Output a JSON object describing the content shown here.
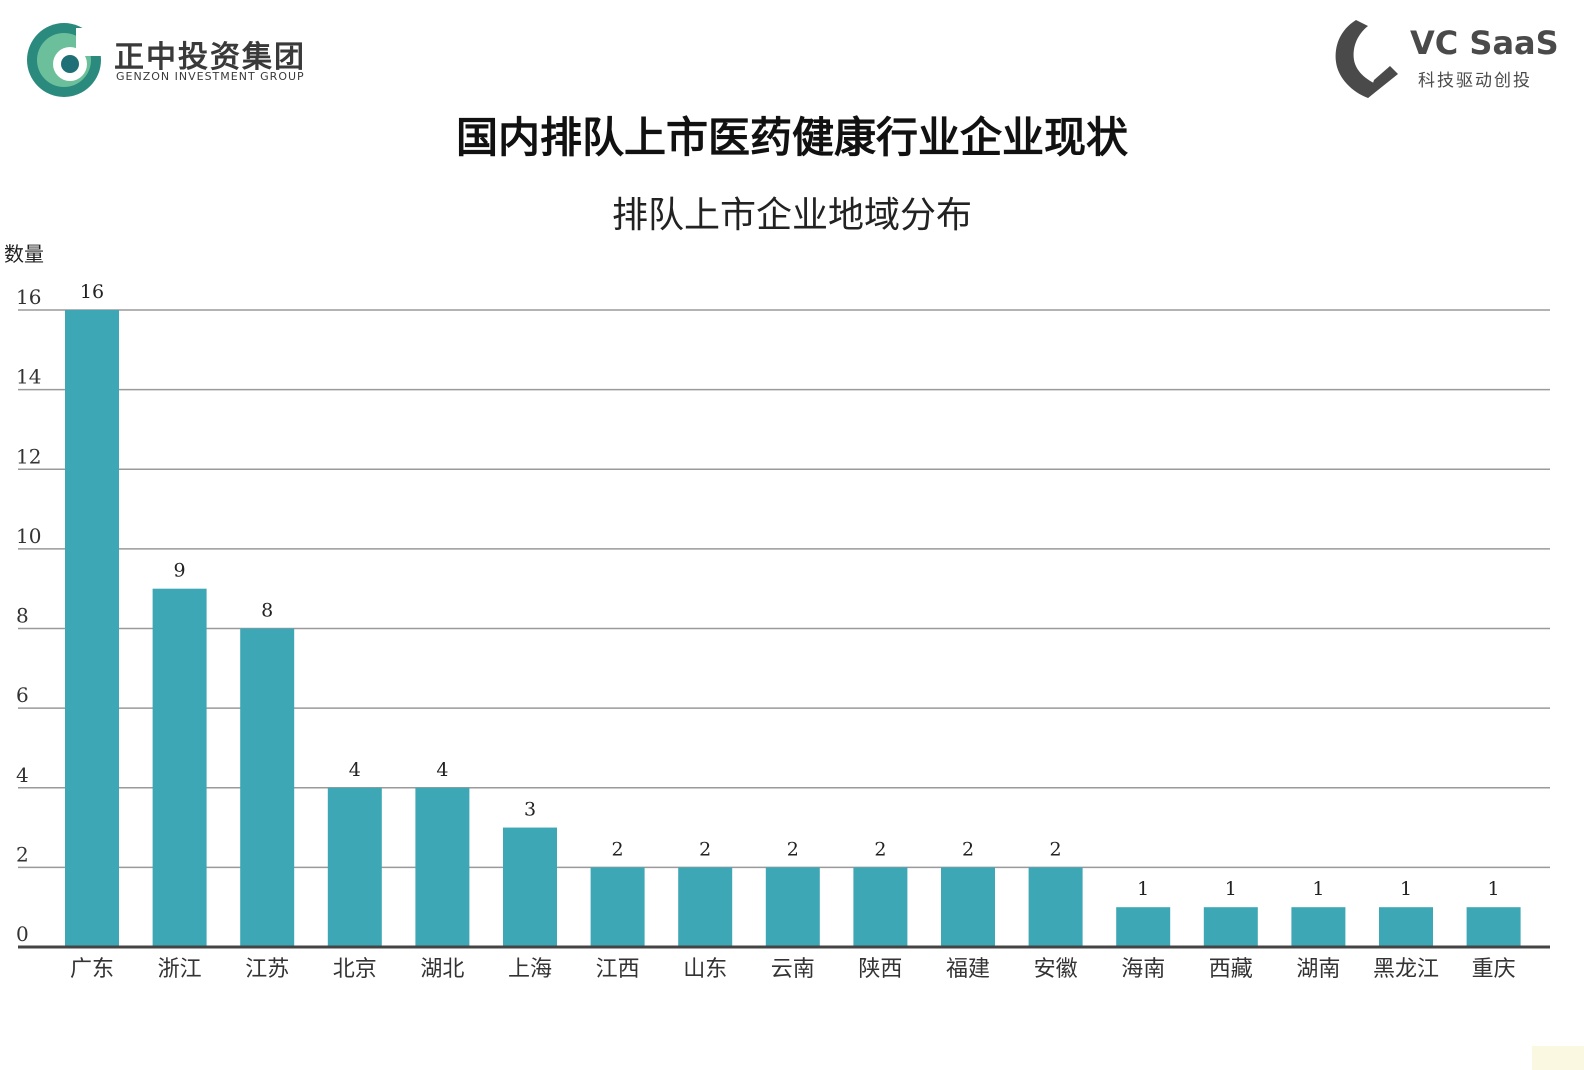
{
  "header": {
    "left_logo": {
      "name_cn": "正中投资集团",
      "name_en": "GENZON INVESTMENT GROUP",
      "colors": [
        "#2a8a7e",
        "#6bbf9a",
        "#1f6f77"
      ]
    },
    "right_logo": {
      "name": "VC SaaS",
      "slogan": "科技驱动创投",
      "color": "#4a4a4a"
    },
    "title": "国内排队上市医药健康行业企业现状"
  },
  "chart_data": {
    "type": "bar",
    "title": "排队上市企业地域分布",
    "ylabel": "数量",
    "xlabel": "",
    "categories": [
      "广东",
      "浙江",
      "江苏",
      "北京",
      "湖北",
      "上海",
      "江西",
      "山东",
      "云南",
      "陕西",
      "福建",
      "安徽",
      "海南",
      "西藏",
      "湖南",
      "黑龙江",
      "重庆"
    ],
    "values": [
      16,
      9,
      8,
      4,
      4,
      3,
      2,
      2,
      2,
      2,
      2,
      2,
      1,
      1,
      1,
      1,
      1
    ],
    "ylim": [
      0,
      16
    ],
    "yticks": [
      0,
      2,
      4,
      6,
      8,
      10,
      12,
      14,
      16
    ],
    "grid": true,
    "legend": "none",
    "bar_color": "#3ea7b6",
    "grid_color": "#9a9a9a",
    "axis_color": "#444444"
  }
}
